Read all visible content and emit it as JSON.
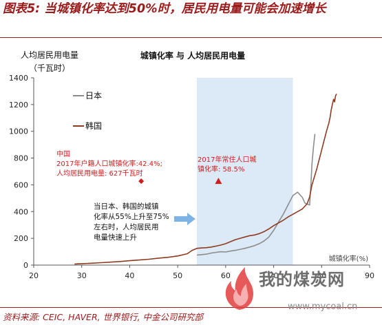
{
  "figure": {
    "title": "图表5: 当城镇化率达到50%时，居民用电量可能会加速增长",
    "source": "资料来源: CEIC, HAVER, 世界银行, 中金公司研究部"
  },
  "watermark": {
    "text": "我的煤炭网",
    "url": "www.mycoal.cn"
  },
  "chart_data": {
    "type": "line",
    "title": "城镇化率 与 人均居民用电量",
    "ylabel_line1": "人均居民用电量",
    "ylabel_line2": "（千瓦时）",
    "xlabel": "城镇化率(%)",
    "xlim": [
      20,
      90
    ],
    "ylim": [
      0,
      1400
    ],
    "xticks": [
      20,
      30,
      40,
      50,
      60,
      70,
      80,
      90
    ],
    "yticks": [
      0,
      200,
      400,
      600,
      800,
      1000,
      1200,
      1400
    ],
    "legend_position": "top-left",
    "highlight_band": {
      "x": [
        54,
        74
      ],
      "color": "#dce9f7"
    },
    "series": [
      {
        "name": "日本",
        "color": "#8c8c8c",
        "points": [
          [
            54,
            75
          ],
          [
            55,
            78
          ],
          [
            56,
            82
          ],
          [
            57,
            90
          ],
          [
            58,
            95
          ],
          [
            59,
            100
          ],
          [
            60,
            98
          ],
          [
            61,
            105
          ],
          [
            62,
            110
          ],
          [
            63,
            118
          ],
          [
            64,
            125
          ],
          [
            65,
            135
          ],
          [
            66,
            145
          ],
          [
            67,
            160
          ],
          [
            68,
            180
          ],
          [
            69,
            210
          ],
          [
            70,
            260
          ],
          [
            71,
            320
          ],
          [
            72,
            380
          ],
          [
            73,
            450
          ],
          [
            74,
            520
          ],
          [
            75,
            545
          ],
          [
            76,
            505
          ],
          [
            76.5,
            465
          ],
          [
            77,
            455
          ],
          [
            77.5,
            450
          ],
          [
            77.8,
            620
          ],
          [
            78,
            760
          ],
          [
            78.3,
            880
          ],
          [
            78.6,
            980
          ]
        ]
      },
      {
        "name": "韩国",
        "color": "#8e3a1f",
        "points": [
          [
            28.5,
            8
          ],
          [
            30,
            11
          ],
          [
            32,
            14
          ],
          [
            34,
            18
          ],
          [
            36,
            22
          ],
          [
            38,
            27
          ],
          [
            40,
            33
          ],
          [
            42,
            38
          ],
          [
            44,
            44
          ],
          [
            46,
            52
          ],
          [
            48,
            58
          ],
          [
            50,
            68
          ],
          [
            52,
            85
          ],
          [
            53,
            110
          ],
          [
            54,
            125
          ],
          [
            55,
            128
          ],
          [
            56,
            130
          ],
          [
            57,
            135
          ],
          [
            58,
            142
          ],
          [
            59,
            150
          ],
          [
            60,
            160
          ],
          [
            61,
            175
          ],
          [
            62,
            190
          ],
          [
            63,
            200
          ],
          [
            64,
            210
          ],
          [
            65,
            220
          ],
          [
            66,
            225
          ],
          [
            67,
            235
          ],
          [
            68,
            250
          ],
          [
            69,
            270
          ],
          [
            70,
            295
          ],
          [
            71,
            315
          ],
          [
            72,
            335
          ],
          [
            73,
            360
          ],
          [
            74,
            380
          ],
          [
            75,
            400
          ],
          [
            76,
            420
          ],
          [
            77,
            460
          ],
          [
            77.5,
            510
          ],
          [
            78,
            600
          ],
          [
            78.5,
            660
          ],
          [
            79,
            720
          ],
          [
            79.5,
            790
          ],
          [
            80,
            860
          ],
          [
            80.5,
            930
          ],
          [
            81,
            1000
          ],
          [
            81.5,
            1060
          ],
          [
            81.8,
            1110
          ],
          [
            82,
            1160
          ],
          [
            82.3,
            1210
          ],
          [
            82.5,
            1240
          ],
          [
            82.7,
            1220
          ],
          [
            82.9,
            1265
          ],
          [
            83.1,
            1280
          ]
        ]
      }
    ],
    "annotations": {
      "china": {
        "lines": [
          "中国",
          "2017年户籍人口城镇化率:42.4%;",
          "人均居民用电量: 627千瓦时"
        ],
        "marker": [
          42.4,
          627
        ],
        "color": "#d11c1c"
      },
      "china2017": {
        "lines": [
          "2017年常住人口城",
          "镇化率: 58.5%"
        ],
        "marker": [
          58.5,
          627
        ],
        "color": "#d11c1c"
      },
      "note": {
        "lines": [
          "当日本、韩国的城镇",
          "化率从55%上升至75%",
          "左右时，人均居民用",
          "电量快速上升"
        ],
        "arrow_color": "#7fb3e3"
      }
    }
  }
}
